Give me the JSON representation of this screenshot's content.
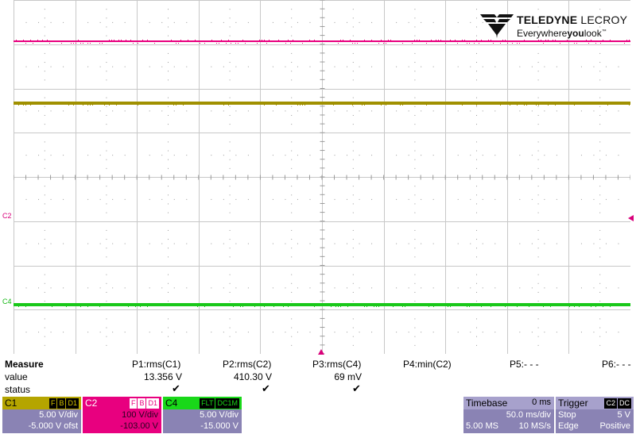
{
  "logo": {
    "brand_bold": "TELEDYNE",
    "brand_thin": "LECROY",
    "tag_pre": "Everywhere",
    "tag_bold": "you",
    "tag_post": "look",
    "tm": "™"
  },
  "markers": {
    "c2": "C2",
    "c4": "C4"
  },
  "measure": {
    "title": "Measure",
    "value_label": "value",
    "status_label": "status",
    "params": [
      {
        "head": "P1:rms(C1)",
        "value": "13.356 V",
        "status": "✔"
      },
      {
        "head": "P2:rms(C2)",
        "value": "410.30 V",
        "status": "✔"
      },
      {
        "head": "P3:rms(C4)",
        "value": "69 mV",
        "status": "✔"
      },
      {
        "head": "P4:min(C2)",
        "value": "",
        "status": ""
      },
      {
        "head": "P5:- - -",
        "value": "",
        "status": ""
      },
      {
        "head": "P6:- - -",
        "value": "",
        "status": ""
      }
    ]
  },
  "channels": {
    "c1": {
      "name": "C1",
      "badges": [
        "F",
        "B",
        "D1"
      ],
      "scale": "5.00 V/div",
      "offset": "-5.000 V ofst",
      "color": "#b5a500"
    },
    "c2": {
      "name": "C2",
      "badges": [
        "F",
        "B",
        "D1"
      ],
      "scale": "100 V/div",
      "offset": "-103.00 V",
      "color": "#e8007f"
    },
    "c4": {
      "name": "C4",
      "badges": [
        "FLT",
        "DC1M"
      ],
      "scale": "5.00 V/div",
      "offset": "-15.000 V",
      "color": "#19d819"
    }
  },
  "timebase": {
    "name": "Timebase",
    "delay": "0 ms",
    "scale": "50.0 ms/div",
    "samples": "5.00 MS",
    "rate": "10 MS/s"
  },
  "trigger": {
    "name": "Trigger",
    "badges": [
      "C2",
      "DC"
    ],
    "mode": "Stop",
    "level": "5 V",
    "type": "Edge",
    "slope": "Positive"
  },
  "waveforms": {
    "c2_color": "#e8007f",
    "c1_color": "#a09000",
    "c4_color": "#19c819"
  }
}
